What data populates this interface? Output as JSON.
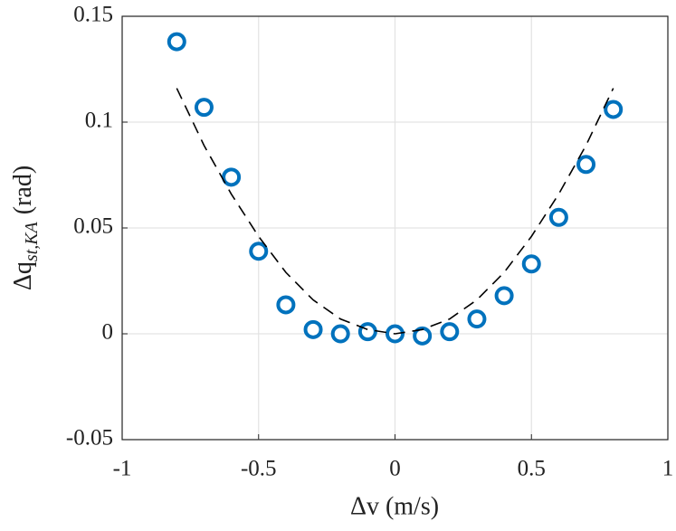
{
  "chart_data": {
    "type": "scatter",
    "x_label": "Δv (m/s)",
    "y_label": [
      "Δq",
      "st,KA",
      "(rad)"
    ],
    "xlim": [
      -1,
      1
    ],
    "xticks": [
      -1,
      -0.5,
      0,
      0.5,
      1
    ],
    "ylim": [
      -0.05,
      0.15
    ],
    "yticks": [
      -0.05,
      0,
      0.05,
      0.1,
      0.15
    ],
    "grid": true,
    "series": [
      {
        "type": "scatter",
        "color": "#0072bd",
        "x": [
          -0.8,
          -0.7,
          -0.6,
          -0.5,
          -0.4,
          -0.3,
          -0.2,
          -0.1,
          0,
          0.1,
          0.2,
          0.3,
          0.4,
          0.5,
          0.6,
          0.7,
          0.8
        ],
        "values": [
          0.138,
          0.107,
          0.074,
          0.039,
          0.0137,
          0.002,
          0,
          0.001,
          0,
          -0.001,
          0.001,
          0.007,
          0.018,
          0.033,
          0.055,
          0.08,
          0.106
        ]
      },
      {
        "type": "line",
        "color": "#000000",
        "dashed": true,
        "x": [
          -0.8,
          -0.7,
          -0.6,
          -0.5,
          -0.4,
          -0.3,
          -0.2,
          -0.1,
          0,
          0.1,
          0.2,
          0.3,
          0.4,
          0.5,
          0.6,
          0.7,
          0.8
        ],
        "values": [
          0.116,
          0.089,
          0.066,
          0.046,
          0.029,
          0.016,
          0.007,
          0.002,
          0,
          0.002,
          0.007,
          0.016,
          0.029,
          0.046,
          0.066,
          0.089,
          0.116
        ]
      }
    ]
  }
}
